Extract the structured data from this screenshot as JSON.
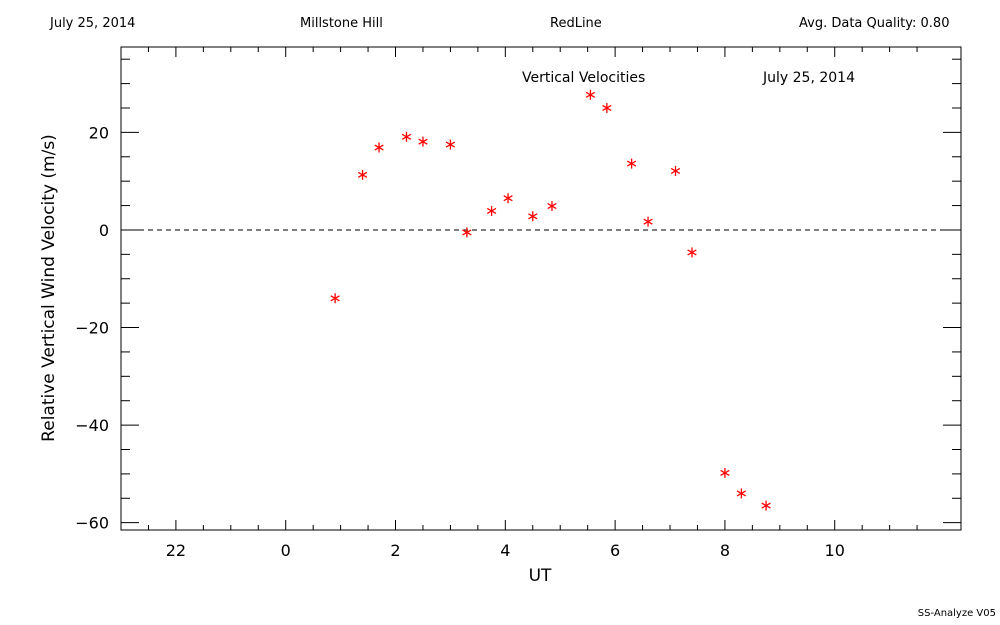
{
  "header": {
    "date": "July 25, 2014",
    "site": "Millstone Hill",
    "line": "RedLine",
    "quality": "Avg. Data Quality: 0.80"
  },
  "footer": {
    "version": "SS-Analyze V05"
  },
  "chart_data": {
    "type": "scatter",
    "title": "Vertical Velocities",
    "annotation": "July 25, 2014",
    "xlabel": "UT",
    "ylabel": "Relative Vertical Wind Velocity (m/s)",
    "xlim": [
      -3.0,
      12.3
    ],
    "ylim": [
      -61.5,
      37.5
    ],
    "x_ticks": [
      22,
      0,
      2,
      4,
      6,
      8,
      10
    ],
    "y_ticks": [
      -60,
      -40,
      -20,
      0,
      20
    ],
    "zero_line": true,
    "marker_color": "#ff0000",
    "series": [
      {
        "x": [
          0.9,
          1.4,
          1.7,
          2.2,
          2.5,
          3.0,
          3.3,
          3.75,
          4.05,
          4.5,
          4.85,
          5.55,
          5.85,
          6.3,
          6.6,
          7.1,
          7.4,
          8.0,
          8.3,
          8.75
        ],
        "y": [
          -14.0,
          11.3,
          16.9,
          19.1,
          18.1,
          17.5,
          -0.5,
          3.9,
          6.5,
          2.8,
          4.9,
          27.7,
          25.0,
          13.6,
          1.7,
          12.1,
          -4.6,
          -49.8,
          -54.0,
          -56.5
        ]
      }
    ]
  }
}
